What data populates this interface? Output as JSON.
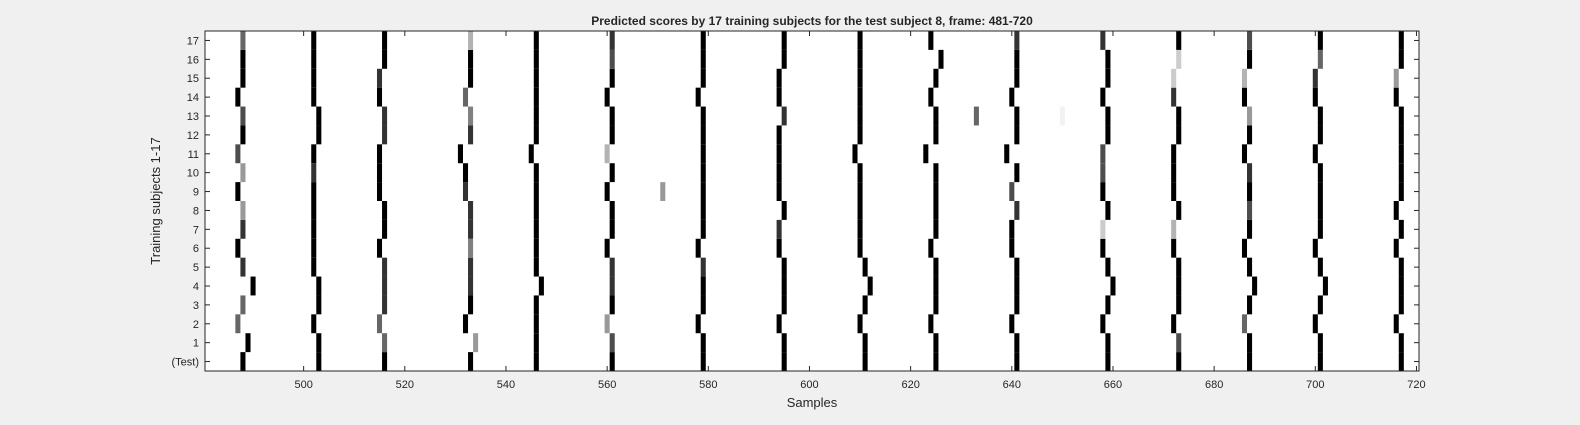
{
  "chart_data": {
    "type": "heatmap",
    "title": "Predicted scores by 17 training subjects for the test subject 8, frame: 481-720",
    "xlabel": "Samples",
    "ylabel": "Training subjects 1-17",
    "xlim": [
      481,
      720
    ],
    "xticks": [
      500,
      520,
      540,
      560,
      580,
      600,
      620,
      640,
      660,
      680,
      700,
      720
    ],
    "ytick_labels": [
      "(Test)",
      "1",
      "2",
      "3",
      "4",
      "5",
      "6",
      "7",
      "8",
      "9",
      "10",
      "11",
      "12",
      "13",
      "14",
      "15",
      "16",
      "17"
    ],
    "colormap": "gray (white = 0, black = 1)",
    "background_value": 0,
    "cell_values_legend": "each entry: [sample, intensity 0-1]",
    "rows": [
      {
        "label": "(Test)",
        "cells": [
          [
            488,
            1
          ],
          [
            503,
            1
          ],
          [
            516,
            1
          ],
          [
            533,
            1
          ],
          [
            546,
            1
          ],
          [
            561,
            1
          ],
          [
            579,
            1
          ],
          [
            595,
            1
          ],
          [
            611,
            1
          ],
          [
            625,
            1
          ],
          [
            641,
            1
          ],
          [
            659,
            1
          ],
          [
            673,
            1
          ],
          [
            687,
            1
          ],
          [
            701,
            1
          ],
          [
            717,
            1
          ]
        ]
      },
      {
        "label": "1",
        "cells": [
          [
            489,
            1
          ],
          [
            503,
            1
          ],
          [
            516,
            0.6
          ],
          [
            534,
            0.4
          ],
          [
            546,
            1
          ],
          [
            561,
            0.7
          ],
          [
            579,
            1
          ],
          [
            595,
            1
          ],
          [
            611,
            1
          ],
          [
            625,
            1
          ],
          [
            641,
            1
          ],
          [
            659,
            1
          ],
          [
            673,
            0.7
          ],
          [
            687,
            1
          ],
          [
            701,
            1
          ],
          [
            717,
            1
          ]
        ]
      },
      {
        "label": "2",
        "cells": [
          [
            487,
            0.6
          ],
          [
            502,
            1
          ],
          [
            515,
            0.6
          ],
          [
            532,
            1
          ],
          [
            546,
            1
          ],
          [
            560,
            0.4
          ],
          [
            578,
            1
          ],
          [
            594,
            1
          ],
          [
            610,
            1
          ],
          [
            624,
            1
          ],
          [
            640,
            1
          ],
          [
            658,
            1
          ],
          [
            672,
            1
          ],
          [
            686,
            0.6
          ],
          [
            700,
            1
          ],
          [
            716,
            1
          ]
        ]
      },
      {
        "label": "3",
        "cells": [
          [
            488,
            0.6
          ],
          [
            503,
            1
          ],
          [
            516,
            0.8
          ],
          [
            533,
            1
          ],
          [
            546,
            1
          ],
          [
            561,
            1
          ],
          [
            579,
            1
          ],
          [
            595,
            1
          ],
          [
            611,
            1
          ],
          [
            625,
            1
          ],
          [
            641,
            1
          ],
          [
            659,
            1
          ],
          [
            673,
            1
          ],
          [
            687,
            1
          ],
          [
            701,
            1
          ],
          [
            717,
            1
          ]
        ]
      },
      {
        "label": "4",
        "cells": [
          [
            490,
            1
          ],
          [
            503,
            1
          ],
          [
            516,
            0.8
          ],
          [
            533,
            0.8
          ],
          [
            547,
            1
          ],
          [
            561,
            0.8
          ],
          [
            579,
            1
          ],
          [
            595,
            1
          ],
          [
            612,
            1
          ],
          [
            625,
            1
          ],
          [
            641,
            1
          ],
          [
            660,
            1
          ],
          [
            673,
            1
          ],
          [
            688,
            1
          ],
          [
            702,
            1
          ],
          [
            717,
            1
          ]
        ]
      },
      {
        "label": "5",
        "cells": [
          [
            488,
            0.8
          ],
          [
            502,
            1
          ],
          [
            516,
            0.8
          ],
          [
            533,
            0.8
          ],
          [
            546,
            1
          ],
          [
            561,
            0.8
          ],
          [
            579,
            0.8
          ],
          [
            595,
            1
          ],
          [
            611,
            1
          ],
          [
            625,
            1
          ],
          [
            641,
            1
          ],
          [
            659,
            1
          ],
          [
            673,
            1
          ],
          [
            687,
            1
          ],
          [
            701,
            1
          ],
          [
            717,
            1
          ]
        ]
      },
      {
        "label": "6",
        "cells": [
          [
            487,
            1
          ],
          [
            502,
            1
          ],
          [
            515,
            1
          ],
          [
            533,
            0.5
          ],
          [
            546,
            1
          ],
          [
            560,
            1
          ],
          [
            578,
            1
          ],
          [
            594,
            1
          ],
          [
            610,
            1
          ],
          [
            624,
            1
          ],
          [
            640,
            1
          ],
          [
            658,
            1
          ],
          [
            672,
            1
          ],
          [
            686,
            1
          ],
          [
            700,
            1
          ],
          [
            716,
            1
          ]
        ]
      },
      {
        "label": "7",
        "cells": [
          [
            488,
            0.8
          ],
          [
            502,
            1
          ],
          [
            516,
            1
          ],
          [
            533,
            0.8
          ],
          [
            546,
            1
          ],
          [
            561,
            1
          ],
          [
            579,
            1
          ],
          [
            594,
            0.8
          ],
          [
            610,
            1
          ],
          [
            625,
            1
          ],
          [
            640,
            1
          ],
          [
            658,
            0.2
          ],
          [
            672,
            0.3
          ],
          [
            687,
            1
          ],
          [
            701,
            1
          ],
          [
            717,
            1
          ]
        ]
      },
      {
        "label": "8",
        "cells": [
          [
            488,
            0.4
          ],
          [
            502,
            1
          ],
          [
            516,
            1
          ],
          [
            533,
            0.8
          ],
          [
            546,
            1
          ],
          [
            561,
            1
          ],
          [
            579,
            1
          ],
          [
            595,
            1
          ],
          [
            610,
            1
          ],
          [
            625,
            1
          ],
          [
            641,
            0.8
          ],
          [
            659,
            1
          ],
          [
            673,
            1
          ],
          [
            687,
            0.7
          ],
          [
            701,
            1
          ],
          [
            716,
            1
          ]
        ]
      },
      {
        "label": "9",
        "cells": [
          [
            487,
            1
          ],
          [
            502,
            1
          ],
          [
            515,
            1
          ],
          [
            532,
            0.8
          ],
          [
            546,
            1
          ],
          [
            560,
            1
          ],
          [
            571,
            0.4
          ],
          [
            579,
            1
          ],
          [
            594,
            1
          ],
          [
            610,
            1
          ],
          [
            625,
            1
          ],
          [
            640,
            0.7
          ],
          [
            658,
            1
          ],
          [
            672,
            1
          ],
          [
            687,
            1
          ],
          [
            701,
            1
          ],
          [
            717,
            1
          ]
        ]
      },
      {
        "label": "10",
        "cells": [
          [
            488,
            0.4
          ],
          [
            502,
            0.8
          ],
          [
            515,
            1
          ],
          [
            532,
            1
          ],
          [
            546,
            1
          ],
          [
            561,
            1
          ],
          [
            579,
            1
          ],
          [
            594,
            1
          ],
          [
            610,
            1
          ],
          [
            625,
            1
          ],
          [
            641,
            1
          ],
          [
            658,
            0.7
          ],
          [
            672,
            1
          ],
          [
            687,
            0.8
          ],
          [
            701,
            1
          ],
          [
            717,
            1
          ]
        ]
      },
      {
        "label": "11",
        "cells": [
          [
            487,
            0.7
          ],
          [
            502,
            1
          ],
          [
            515,
            1
          ],
          [
            531,
            1
          ],
          [
            545,
            1
          ],
          [
            560,
            0.3
          ],
          [
            579,
            1
          ],
          [
            594,
            1
          ],
          [
            609,
            1
          ],
          [
            623,
            1
          ],
          [
            639,
            1
          ],
          [
            658,
            0.7
          ],
          [
            672,
            1
          ],
          [
            686,
            1
          ],
          [
            700,
            1
          ],
          [
            717,
            1
          ]
        ]
      },
      {
        "label": "12",
        "cells": [
          [
            488,
            1
          ],
          [
            503,
            1
          ],
          [
            516,
            0.8
          ],
          [
            533,
            0.8
          ],
          [
            546,
            1
          ],
          [
            561,
            1
          ],
          [
            579,
            1
          ],
          [
            594,
            1
          ],
          [
            610,
            1
          ],
          [
            625,
            1
          ],
          [
            641,
            1
          ],
          [
            659,
            1
          ],
          [
            673,
            1
          ],
          [
            687,
            1
          ],
          [
            701,
            1
          ],
          [
            717,
            1
          ]
        ]
      },
      {
        "label": "13",
        "cells": [
          [
            488,
            0.7
          ],
          [
            503,
            1
          ],
          [
            516,
            0.8
          ],
          [
            533,
            0.5
          ],
          [
            546,
            1
          ],
          [
            561,
            1
          ],
          [
            579,
            1
          ],
          [
            595,
            0.8
          ],
          [
            610,
            1
          ],
          [
            625,
            1
          ],
          [
            633,
            0.6
          ],
          [
            641,
            1
          ],
          [
            650,
            0.05
          ],
          [
            659,
            1
          ],
          [
            673,
            1
          ],
          [
            687,
            0.4
          ],
          [
            701,
            1
          ],
          [
            717,
            1
          ]
        ]
      },
      {
        "label": "14",
        "cells": [
          [
            487,
            1
          ],
          [
            502,
            1
          ],
          [
            515,
            1
          ],
          [
            532,
            0.6
          ],
          [
            546,
            1
          ],
          [
            560,
            1
          ],
          [
            578,
            1
          ],
          [
            594,
            1
          ],
          [
            610,
            1
          ],
          [
            624,
            1
          ],
          [
            640,
            1
          ],
          [
            658,
            1
          ],
          [
            672,
            0.8
          ],
          [
            686,
            1
          ],
          [
            700,
            1
          ],
          [
            716,
            1
          ]
        ]
      },
      {
        "label": "15",
        "cells": [
          [
            488,
            1
          ],
          [
            502,
            1
          ],
          [
            515,
            0.8
          ],
          [
            533,
            1
          ],
          [
            546,
            1
          ],
          [
            561,
            1
          ],
          [
            579,
            1
          ],
          [
            594,
            1
          ],
          [
            610,
            1
          ],
          [
            625,
            1
          ],
          [
            641,
            1
          ],
          [
            659,
            1
          ],
          [
            672,
            0.2
          ],
          [
            686,
            0.3
          ],
          [
            700,
            0.8
          ],
          [
            716,
            0.4
          ]
        ]
      },
      {
        "label": "16",
        "cells": [
          [
            488,
            1
          ],
          [
            502,
            1
          ],
          [
            516,
            1
          ],
          [
            533,
            1
          ],
          [
            546,
            1
          ],
          [
            561,
            0.7
          ],
          [
            579,
            1
          ],
          [
            595,
            1
          ],
          [
            610,
            1
          ],
          [
            626,
            1
          ],
          [
            641,
            1
          ],
          [
            659,
            1
          ],
          [
            673,
            0.2
          ],
          [
            687,
            1
          ],
          [
            701,
            0.6
          ],
          [
            717,
            1
          ]
        ]
      },
      {
        "label": "17",
        "cells": [
          [
            488,
            0.6
          ],
          [
            502,
            1
          ],
          [
            516,
            1
          ],
          [
            533,
            0.3
          ],
          [
            546,
            1
          ],
          [
            561,
            0.8
          ],
          [
            579,
            1
          ],
          [
            595,
            1
          ],
          [
            610,
            1
          ],
          [
            624,
            1
          ],
          [
            641,
            0.8
          ],
          [
            658,
            0.8
          ],
          [
            673,
            1
          ],
          [
            687,
            0.7
          ],
          [
            701,
            1
          ],
          [
            717,
            1
          ]
        ]
      }
    ]
  }
}
